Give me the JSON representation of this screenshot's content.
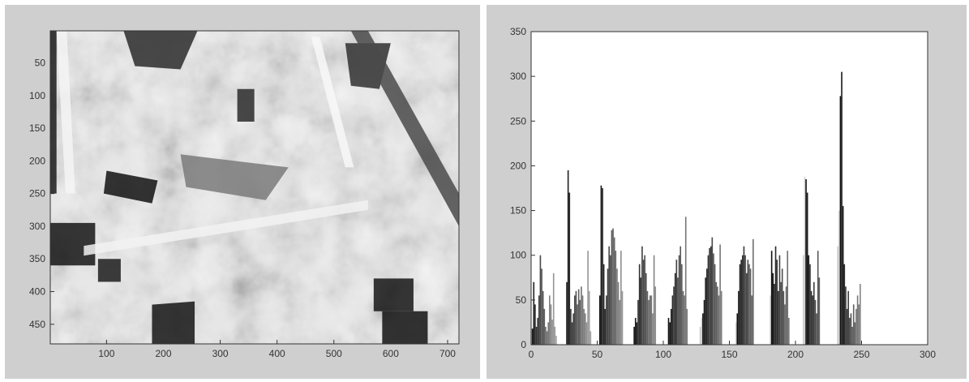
{
  "chart_data": [
    {
      "type": "image",
      "colormap": "grayscale",
      "grid": false,
      "xlim": [
        1,
        720
      ],
      "ylim": [
        480,
        1
      ],
      "xticks": [
        100,
        200,
        300,
        400,
        500,
        600,
        700
      ],
      "yticks": [
        50,
        100,
        150,
        200,
        250,
        300,
        350,
        400,
        450
      ],
      "title": "",
      "xlabel": "",
      "ylabel": ""
    },
    {
      "type": "bar",
      "grid": false,
      "xlim": [
        0,
        300
      ],
      "ylim": [
        0,
        350
      ],
      "xticks": [
        0,
        50,
        100,
        150,
        200,
        250,
        300
      ],
      "yticks": [
        0,
        50,
        100,
        150,
        200,
        250,
        300,
        350
      ],
      "title": "",
      "xlabel": "",
      "ylabel": "",
      "series": [
        {
          "values": [
            [
              1,
              18
            ],
            [
              2,
              70
            ],
            [
              3,
              45
            ],
            [
              4,
              20
            ],
            [
              5,
              30
            ],
            [
              6,
              55
            ],
            [
              7,
              100
            ],
            [
              8,
              85
            ],
            [
              9,
              60
            ],
            [
              10,
              40
            ],
            [
              11,
              20
            ],
            [
              12,
              15
            ],
            [
              13,
              25
            ],
            [
              14,
              55
            ],
            [
              15,
              45
            ],
            [
              16,
              28
            ],
            [
              17,
              80
            ],
            [
              18,
              20
            ],
            [
              19,
              10
            ],
            [
              27,
              70
            ],
            [
              28,
              195
            ],
            [
              29,
              170
            ],
            [
              30,
              40
            ],
            [
              31,
              25
            ],
            [
              32,
              35
            ],
            [
              33,
              55
            ],
            [
              34,
              60
            ],
            [
              35,
              45
            ],
            [
              36,
              62
            ],
            [
              37,
              50
            ],
            [
              38,
              65
            ],
            [
              39,
              55
            ],
            [
              40,
              40
            ],
            [
              41,
              35
            ],
            [
              42,
              25
            ],
            [
              43,
              105
            ],
            [
              44,
              60
            ],
            [
              45,
              15
            ],
            [
              52,
              55
            ],
            [
              53,
              178
            ],
            [
              54,
              175
            ],
            [
              55,
              90
            ],
            [
              56,
              40
            ],
            [
              57,
              55
            ],
            [
              58,
              85
            ],
            [
              59,
              110
            ],
            [
              60,
              100
            ],
            [
              61,
              128
            ],
            [
              62,
              130
            ],
            [
              63,
              120
            ],
            [
              64,
              105
            ],
            [
              65,
              85
            ],
            [
              66,
              70
            ],
            [
              67,
              50
            ],
            [
              68,
              105
            ],
            [
              69,
              60
            ],
            [
              78,
              20
            ],
            [
              79,
              30
            ],
            [
              80,
              25
            ],
            [
              81,
              50
            ],
            [
              82,
              90
            ],
            [
              83,
              75
            ],
            [
              84,
              110
            ],
            [
              85,
              95
            ],
            [
              86,
              100
            ],
            [
              87,
              80
            ],
            [
              88,
              60
            ],
            [
              89,
              50
            ],
            [
              90,
              55
            ],
            [
              91,
              55
            ],
            [
              92,
              35
            ],
            [
              93,
              100
            ],
            [
              94,
              65
            ],
            [
              104,
              30
            ],
            [
              105,
              25
            ],
            [
              106,
              40
            ],
            [
              107,
              55
            ],
            [
              108,
              65
            ],
            [
              109,
              80
            ],
            [
              110,
              95
            ],
            [
              111,
              75
            ],
            [
              112,
              100
            ],
            [
              113,
              110
            ],
            [
              114,
              90
            ],
            [
              115,
              60
            ],
            [
              116,
              55
            ],
            [
              117,
              143
            ],
            [
              118,
              40
            ],
            [
              128,
              20
            ],
            [
              129,
              30
            ],
            [
              130,
              35
            ],
            [
              131,
              50
            ],
            [
              132,
              75
            ],
            [
              133,
              85
            ],
            [
              134,
              100
            ],
            [
              135,
              108
            ],
            [
              136,
              110
            ],
            [
              137,
              120
            ],
            [
              138,
              102
            ],
            [
              139,
              90
            ],
            [
              140,
              70
            ],
            [
              141,
              65
            ],
            [
              142,
              55
            ],
            [
              143,
              112
            ],
            [
              144,
              60
            ],
            [
              155,
              25
            ],
            [
              156,
              35
            ],
            [
              157,
              60
            ],
            [
              158,
              90
            ],
            [
              159,
              95
            ],
            [
              160,
              100
            ],
            [
              161,
              110
            ],
            [
              162,
              100
            ],
            [
              163,
              80
            ],
            [
              164,
              95
            ],
            [
              165,
              90
            ],
            [
              166,
              85
            ],
            [
              167,
              55
            ],
            [
              168,
              118
            ],
            [
              181,
              55
            ],
            [
              182,
              105
            ],
            [
              183,
              80
            ],
            [
              184,
              68
            ],
            [
              185,
              110
            ],
            [
              186,
              95
            ],
            [
              187,
              60
            ],
            [
              188,
              100
            ],
            [
              189,
              70
            ],
            [
              190,
              85
            ],
            [
              191,
              60
            ],
            [
              192,
              45
            ],
            [
              193,
              65
            ],
            [
              194,
              105
            ],
            [
              195,
              30
            ],
            [
              206,
              100
            ],
            [
              207,
              188
            ],
            [
              208,
              185
            ],
            [
              209,
              170
            ],
            [
              210,
              100
            ],
            [
              211,
              90
            ],
            [
              212,
              60
            ],
            [
              213,
              55
            ],
            [
              214,
              70
            ],
            [
              215,
              50
            ],
            [
              216,
              35
            ],
            [
              217,
              105
            ],
            [
              218,
              75
            ],
            [
              232,
              110
            ],
            [
              233,
              150
            ],
            [
              234,
              278
            ],
            [
              235,
              305
            ],
            [
              236,
              155
            ],
            [
              237,
              90
            ],
            [
              238,
              65
            ],
            [
              239,
              40
            ],
            [
              240,
              60
            ],
            [
              241,
              30
            ],
            [
              242,
              35
            ],
            [
              243,
              20
            ],
            [
              244,
              45
            ],
            [
              245,
              25
            ],
            [
              246,
              40
            ],
            [
              247,
              55
            ],
            [
              248,
              45
            ],
            [
              249,
              68
            ]
          ]
        }
      ]
    }
  ]
}
